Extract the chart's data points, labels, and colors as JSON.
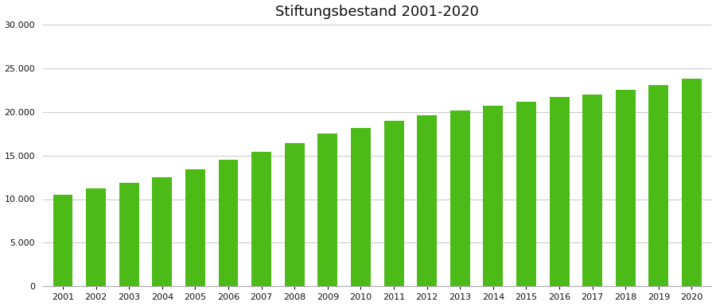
{
  "title": "Stiftungsbestand 2001-2020",
  "years": [
    2001,
    2002,
    2003,
    2004,
    2005,
    2006,
    2007,
    2008,
    2009,
    2010,
    2011,
    2012,
    2013,
    2014,
    2015,
    2016,
    2017,
    2018,
    2019,
    2020
  ],
  "values": [
    10500,
    11200,
    11900,
    12500,
    13400,
    14500,
    15400,
    16400,
    17500,
    18100,
    19000,
    19600,
    20100,
    20700,
    21100,
    21700,
    22000,
    22500,
    23100,
    23800
  ],
  "bar_color": "#4cbb17",
  "ylim": [
    0,
    30000
  ],
  "yticks": [
    0,
    5000,
    10000,
    15000,
    20000,
    25000,
    30000
  ],
  "background_color": "#ffffff",
  "grid_color": "#cccccc",
  "title_fontsize": 13,
  "tick_fontsize": 8,
  "bar_width": 0.6
}
